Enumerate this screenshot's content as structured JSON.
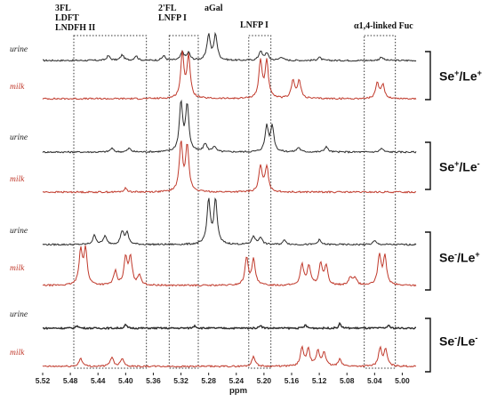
{
  "chart_data": {
    "type": "line",
    "xlabel": "ppm",
    "xlim": [
      5.52,
      4.98
    ],
    "x_reversed": true,
    "ticks": [
      "5.52",
      "5.48",
      "5.44",
      "5.40",
      "5.36",
      "5.32",
      "5.28",
      "5.24",
      "5.20",
      "5.16",
      "5.12",
      "5.08",
      "5.04",
      "5.00"
    ],
    "regions": [
      {
        "label_lines": [
          "3FL",
          "LDFT",
          "LNDFH II"
        ],
        "x_from": 5.475,
        "x_to": 5.37
      },
      {
        "label_lines": [
          "2'FL",
          "LNFP I"
        ],
        "x_from": 5.337,
        "x_to": 5.295
      },
      {
        "label_lines": [
          "aGal"
        ],
        "x_from": null,
        "x_to": null
      },
      {
        "label_lines": [
          "LNFP I"
        ],
        "x_from": 5.222,
        "x_to": 5.19
      },
      {
        "label_lines": [
          "α1,4-linked Fuc"
        ],
        "x_from": 5.055,
        "x_to": 5.01
      }
    ],
    "groups": [
      {
        "label": "Se+/Le+",
        "urine": {
          "name": "urine",
          "peaks": [
            [
              5.425,
              0.1
            ],
            [
              5.405,
              0.12
            ],
            [
              5.385,
              0.1
            ],
            [
              5.345,
              0.1
            ],
            [
              5.318,
              0.18
            ],
            [
              5.309,
              0.16
            ],
            [
              5.28,
              0.55
            ],
            [
              5.27,
              0.55
            ],
            [
              5.205,
              0.2
            ],
            [
              5.196,
              0.16
            ],
            [
              5.175,
              0.08
            ],
            [
              5.12,
              0.07
            ],
            [
              5.03,
              0.08
            ]
          ]
        },
        "milk": {
          "name": "milk",
          "peaks": [
            [
              5.318,
              0.95
            ],
            [
              5.309,
              0.9
            ],
            [
              5.205,
              0.8
            ],
            [
              5.196,
              0.8
            ],
            [
              5.158,
              0.4
            ],
            [
              5.149,
              0.38
            ],
            [
              5.036,
              0.33
            ],
            [
              5.028,
              0.3
            ]
          ]
        }
      },
      {
        "label": "Se+/Le-",
        "urine": {
          "name": "urine",
          "peaks": [
            [
              5.42,
              0.08
            ],
            [
              5.395,
              0.08
            ],
            [
              5.32,
              1.05
            ],
            [
              5.311,
              1.0
            ],
            [
              5.285,
              0.18
            ],
            [
              5.272,
              0.12
            ],
            [
              5.196,
              0.55
            ],
            [
              5.188,
              0.55
            ],
            [
              5.15,
              0.1
            ],
            [
              5.11,
              0.12
            ],
            [
              5.03,
              0.08
            ]
          ]
        },
        "milk": {
          "name": "milk",
          "peaks": [
            [
              5.32,
              1.05
            ],
            [
              5.311,
              1.0
            ],
            [
              5.205,
              0.55
            ],
            [
              5.196,
              0.55
            ],
            [
              5.4,
              0.08
            ]
          ]
        }
      },
      {
        "label": "Se-/Le+",
        "urine": {
          "name": "urine",
          "peaks": [
            [
              5.445,
              0.2
            ],
            [
              5.43,
              0.18
            ],
            [
              5.405,
              0.28
            ],
            [
              5.398,
              0.24
            ],
            [
              5.28,
              0.95
            ],
            [
              5.27,
              0.95
            ],
            [
              5.215,
              0.18
            ],
            [
              5.205,
              0.16
            ],
            [
              5.17,
              0.1
            ],
            [
              5.12,
              0.1
            ],
            [
              5.04,
              0.08
            ]
          ]
        },
        "milk": {
          "name": "milk",
          "peaks": [
            [
              5.465,
              0.75
            ],
            [
              5.458,
              0.75
            ],
            [
              5.415,
              0.3
            ],
            [
              5.4,
              0.58
            ],
            [
              5.393,
              0.58
            ],
            [
              5.38,
              0.22
            ],
            [
              5.225,
              0.6
            ],
            [
              5.215,
              0.55
            ],
            [
              5.145,
              0.45
            ],
            [
              5.135,
              0.42
            ],
            [
              5.118,
              0.45
            ],
            [
              5.11,
              0.4
            ],
            [
              5.075,
              0.18
            ],
            [
              5.068,
              0.16
            ],
            [
              5.033,
              0.65
            ],
            [
              5.025,
              0.6
            ]
          ]
        }
      },
      {
        "label": "Se-/Le-",
        "urine": {
          "name": "urine",
          "peaks": [
            [
              5.47,
              0.06
            ],
            [
              5.4,
              0.07
            ],
            [
              5.3,
              0.06
            ],
            [
              5.205,
              0.07
            ],
            [
              5.14,
              0.07
            ],
            [
              5.09,
              0.1
            ],
            [
              5.02,
              0.06
            ]
          ]
        },
        "milk": {
          "name": "milk",
          "peaks": [
            [
              5.465,
              0.18
            ],
            [
              5.42,
              0.2
            ],
            [
              5.405,
              0.18
            ],
            [
              5.215,
              0.22
            ],
            [
              5.145,
              0.38
            ],
            [
              5.136,
              0.36
            ],
            [
              5.122,
              0.32
            ],
            [
              5.113,
              0.3
            ],
            [
              5.09,
              0.15
            ],
            [
              5.032,
              0.38
            ],
            [
              5.024,
              0.35
            ]
          ]
        }
      }
    ]
  },
  "labels": {
    "region_1_line1": "3FL",
    "region_1_line2": "LDFT",
    "region_1_line3": "LNDFH II",
    "region_2_line1": "2'FL",
    "region_2_line2": "LNFP I",
    "region_3": "aGal",
    "region_4": "LNFP I",
    "region_5": "α1,4-linked Fuc",
    "urine": "urine",
    "milk": "milk",
    "xlabel": "ppm"
  },
  "groups_text": [
    {
      "se": "Se",
      "se_sup": "+",
      "le": "Le",
      "le_sup": "+"
    },
    {
      "se": "Se",
      "se_sup": "+",
      "le": "Le",
      "le_sup": "-"
    },
    {
      "se": "Se",
      "se_sup": "-",
      "le": "Le",
      "le_sup": "+"
    },
    {
      "se": "Se",
      "se_sup": "-",
      "le": "Le",
      "le_sup": "-"
    }
  ],
  "colors": {
    "urine": "#2b2b2b",
    "milk": "#c0392b",
    "box": "#333333"
  }
}
